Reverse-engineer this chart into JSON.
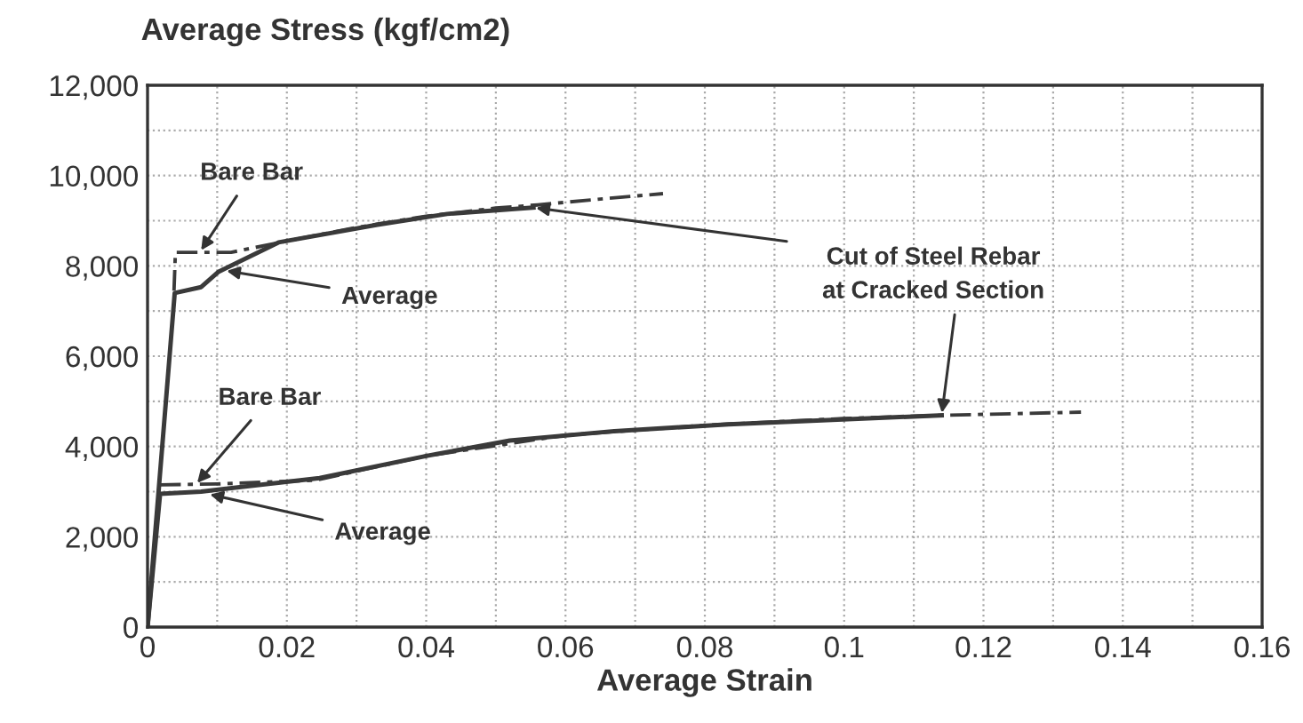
{
  "chart_data": {
    "type": "line",
    "title": "Average Stress (kgf/cm2)",
    "xlabel": "Average Strain",
    "series": [
      {
        "color": "#3a3a3a",
        "line_style": "solid",
        "x": [
          0,
          0.0039,
          0.0077,
          0.0102,
          0.0188,
          0.033,
          0.043,
          0.0554
        ],
        "values": [
          0,
          7400,
          7530,
          7870,
          8520,
          8910,
          9150,
          9290
        ]
      },
      {
        "color": "#3a3a3a",
        "line_style": "dashdot",
        "x": [
          0.0038,
          0.004,
          0.012,
          0.02,
          0.03,
          0.04,
          0.05,
          0.056,
          0.065,
          0.074
        ],
        "values": [
          7450,
          8300,
          8300,
          8550,
          8850,
          9100,
          9280,
          9350,
          9480,
          9600
        ]
      },
      {
        "color": "#3a3a3a",
        "line_style": "solid",
        "x": [
          0,
          0.0018,
          0.0077,
          0.0247,
          0.04,
          0.052,
          0.067,
          0.0834,
          0.114
        ],
        "values": [
          0,
          2950,
          3000,
          3300,
          3790,
          4130,
          4340,
          4490,
          4690
        ]
      },
      {
        "color": "#3a3a3a",
        "line_style": "dashdot",
        "x": [
          0.0018,
          0.01,
          0.024,
          0.04,
          0.06,
          0.08,
          0.1,
          0.114,
          0.134
        ],
        "values": [
          3150,
          3170,
          3250,
          3790,
          4250,
          4470,
          4620,
          4690,
          4760
        ]
      }
    ],
    "annotations": [
      {
        "text": "Bare Bar",
        "x": 0.0075,
        "y": 8300
      },
      {
        "text": "Average",
        "x": 0.011,
        "y": 7900
      },
      {
        "text": "Bare Bar",
        "x": 0.0069,
        "y": 3150
      },
      {
        "text": "Average",
        "x": 0.0086,
        "y": 2950
      },
      {
        "text": "Cut of Steel Rebar\nat Cracked Section",
        "x": 0.114,
        "y": 4690
      }
    ],
    "xlim": [
      0,
      0.16
    ],
    "ylim": [
      0,
      12000
    ],
    "xticks": [
      0,
      {
        "value": 0.01,
        "label": null
      },
      0.02,
      {
        "value": 0.03,
        "label": null
      },
      0.04,
      {
        "value": 0.05,
        "label": null
      },
      0.06,
      {
        "value": 0.07,
        "label": null
      },
      0.08,
      {
        "value": 0.09,
        "label": null
      },
      0.1,
      {
        "value": 0.11,
        "label": null
      },
      0.12,
      {
        "value": 0.13,
        "label": null
      },
      0.14,
      {
        "value": 0.15,
        "label": null
      },
      0.16
    ],
    "yticks": [
      0,
      {
        "value": 1000,
        "label": null
      },
      {
        "value": 2000,
        "label": "2,000"
      },
      {
        "value": 3000,
        "label": null
      },
      {
        "value": 4000,
        "label": "4,000"
      },
      {
        "value": 5000,
        "label": null
      },
      {
        "value": 6000,
        "label": "6,000"
      },
      {
        "value": 7000,
        "label": null
      },
      {
        "value": 8000,
        "label": "8,000"
      },
      {
        "value": 9000,
        "label": null
      },
      {
        "value": 10000,
        "label": "10,000"
      },
      {
        "value": 11000,
        "label": null
      },
      {
        "value": 12000,
        "label": "12,000"
      }
    ],
    "grid": true,
    "legend": false
  }
}
